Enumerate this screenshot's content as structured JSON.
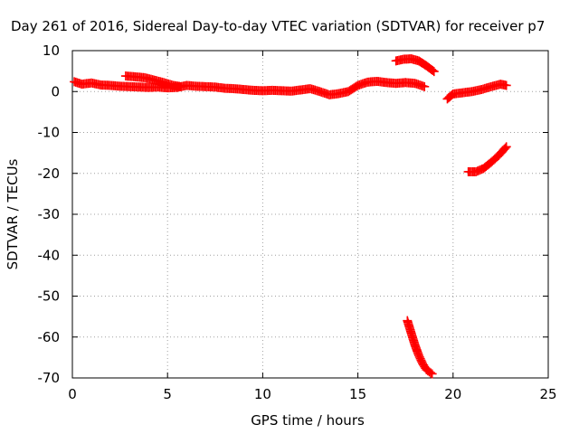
{
  "chart_data": {
    "type": "scatter",
    "title": "Day 261 of 2016, Sidereal Day-to-day VTEC variation (SDTVAR) for receiver p7",
    "xlabel": "GPS time / hours",
    "ylabel": "SDTVAR / TECUs",
    "xlim": [
      0,
      25
    ],
    "ylim": [
      -70,
      10
    ],
    "xticks": [
      "0",
      "5",
      "10",
      "15",
      "20",
      "25"
    ],
    "yticks": [
      "10",
      "0",
      "-10",
      "-20",
      "-30",
      "-40",
      "-50",
      "-60",
      "-70"
    ],
    "grid": true,
    "legend": "none",
    "marker": "plus",
    "color": "#ff0000",
    "series": [
      {
        "values": [
          {
            "x": 0.1,
            "y": 2.4
          },
          {
            "x": 0.5,
            "y": 1.8
          },
          {
            "x": 1.0,
            "y": 2.1
          },
          {
            "x": 1.5,
            "y": 1.6
          },
          {
            "x": 2.0,
            "y": 1.5
          },
          {
            "x": 2.5,
            "y": 1.3
          },
          {
            "x": 3.0,
            "y": 1.2
          },
          {
            "x": 3.5,
            "y": 1.1
          },
          {
            "x": 4.0,
            "y": 1.0
          },
          {
            "x": 4.5,
            "y": 1.1
          },
          {
            "x": 5.0,
            "y": 0.9
          },
          {
            "x": 5.5,
            "y": 1.0
          },
          {
            "x": 6.0,
            "y": 1.5
          },
          {
            "x": 6.5,
            "y": 1.3
          },
          {
            "x": 7.0,
            "y": 1.2
          },
          {
            "x": 7.5,
            "y": 1.1
          },
          {
            "x": 8.0,
            "y": 0.8
          },
          {
            "x": 8.5,
            "y": 0.7
          },
          {
            "x": 9.0,
            "y": 0.5
          },
          {
            "x": 9.5,
            "y": 0.3
          },
          {
            "x": 10.0,
            "y": 0.2
          },
          {
            "x": 10.5,
            "y": 0.3
          },
          {
            "x": 11.0,
            "y": 0.2
          },
          {
            "x": 11.5,
            "y": 0.1
          },
          {
            "x": 12.0,
            "y": 0.4
          },
          {
            "x": 12.5,
            "y": 0.7
          },
          {
            "x": 13.0,
            "y": 0.0
          },
          {
            "x": 13.5,
            "y": -0.8
          },
          {
            "x": 14.0,
            "y": -0.5
          },
          {
            "x": 14.5,
            "y": 0.0
          },
          {
            "x": 15.0,
            "y": 1.5
          },
          {
            "x": 15.5,
            "y": 2.3
          },
          {
            "x": 16.0,
            "y": 2.5
          },
          {
            "x": 16.5,
            "y": 2.2
          },
          {
            "x": 17.0,
            "y": 2.0
          },
          {
            "x": 17.5,
            "y": 2.2
          },
          {
            "x": 18.0,
            "y": 2.0
          },
          {
            "x": 18.5,
            "y": 1.2
          }
        ]
      },
      {
        "values": [
          {
            "x": 2.8,
            "y": 3.8
          },
          {
            "x": 3.3,
            "y": 3.6
          },
          {
            "x": 3.8,
            "y": 3.4
          },
          {
            "x": 4.3,
            "y": 2.8
          },
          {
            "x": 4.8,
            "y": 2.2
          },
          {
            "x": 5.3,
            "y": 1.5
          },
          {
            "x": 5.7,
            "y": 1.2
          }
        ]
      },
      {
        "values": [
          {
            "x": 17.0,
            "y": 7.5
          },
          {
            "x": 17.4,
            "y": 7.9
          },
          {
            "x": 17.8,
            "y": 8.0
          },
          {
            "x": 18.2,
            "y": 7.5
          },
          {
            "x": 18.6,
            "y": 6.3
          },
          {
            "x": 19.0,
            "y": 4.9
          }
        ]
      },
      {
        "values": [
          {
            "x": 17.6,
            "y": -56
          },
          {
            "x": 17.8,
            "y": -59
          },
          {
            "x": 18.0,
            "y": -62
          },
          {
            "x": 18.2,
            "y": -64.5
          },
          {
            "x": 18.4,
            "y": -66.5
          },
          {
            "x": 18.6,
            "y": -68
          },
          {
            "x": 18.9,
            "y": -69
          }
        ]
      },
      {
        "values": [
          {
            "x": 19.7,
            "y": -1.8
          },
          {
            "x": 20.0,
            "y": -0.6
          },
          {
            "x": 20.5,
            "y": -0.3
          },
          {
            "x": 21.0,
            "y": 0.0
          },
          {
            "x": 21.5,
            "y": 0.5
          },
          {
            "x": 22.0,
            "y": 1.2
          },
          {
            "x": 22.5,
            "y": 1.8
          },
          {
            "x": 22.8,
            "y": 1.5
          }
        ]
      },
      {
        "values": [
          {
            "x": 20.8,
            "y": -19.6
          },
          {
            "x": 21.2,
            "y": -19.6
          },
          {
            "x": 21.6,
            "y": -18.8
          },
          {
            "x": 22.0,
            "y": -17.3
          },
          {
            "x": 22.4,
            "y": -15.6
          },
          {
            "x": 22.8,
            "y": -13.5
          }
        ]
      }
    ]
  }
}
